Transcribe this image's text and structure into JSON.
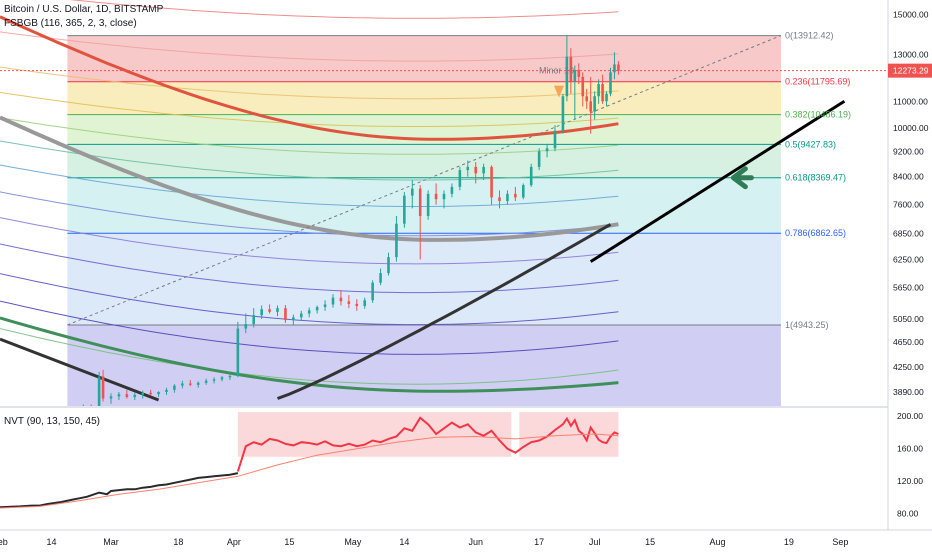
{
  "header": {
    "symbol_title": "Bitcoin / U.S. Dollar, 1D, BITSTAMP",
    "indicator_label": "FSBGB (116, 365, 2, 3, close)"
  },
  "sub_panel": {
    "indicator_label": "NVT (90, 13, 150, 45)"
  },
  "chart_data": [
    {
      "type": "candlestick",
      "title": "Bitcoin / U.S. Dollar, 1D, BITSTAMP",
      "y_scale": "log",
      "ylim": [
        3700,
        15800
      ],
      "y_ticks": [
        15000,
        13000,
        11000,
        10000,
        9200,
        8400,
        7600,
        6850,
        6250,
        5650,
        5050,
        4650,
        4250,
        3890
      ],
      "y_tick_labels": [
        "15000.00",
        "13000.00",
        "11000.00",
        "10000.00",
        "9200.00",
        "8400.00",
        "7600.00",
        "6850.00",
        "6250.00",
        "5650.00",
        "5050.00",
        "4650.00",
        "4250.00",
        "3890.00"
      ],
      "x_tick_labels": [
        {
          "label": "Feb",
          "day": 0
        },
        {
          "label": "14",
          "day": 13
        },
        {
          "label": "Mar",
          "day": 28
        },
        {
          "label": "18",
          "day": 45
        },
        {
          "label": "Apr",
          "day": 59
        },
        {
          "label": "15",
          "day": 73
        },
        {
          "label": "May",
          "day": 89
        },
        {
          "label": "14",
          "day": 102
        },
        {
          "label": "Jun",
          "day": 120
        },
        {
          "label": "17",
          "day": 136
        },
        {
          "label": "Jul",
          "day": 150
        },
        {
          "label": "15",
          "day": 164
        },
        {
          "label": "Aug",
          "day": 181
        },
        {
          "label": "19",
          "day": 199
        },
        {
          "label": "Sep",
          "day": 212
        }
      ],
      "last_price": 12273.29,
      "last_price_label": "12273.29",
      "fib_retracement": {
        "levels": [
          {
            "ratio": "0",
            "price": 13912.42,
            "label": "0(13912.42)",
            "color": "#787b86"
          },
          {
            "ratio": "0.236",
            "price": 11795.69,
            "label": "0.236(11795.69)",
            "color": "#f23645"
          },
          {
            "ratio": "0.382",
            "price": 10486.19,
            "label": "0.382(10486.19)",
            "color": "#4caf50"
          },
          {
            "ratio": "0.5",
            "price": 9427.83,
            "label": "0.5(9427.83)",
            "color": "#089981"
          },
          {
            "ratio": "0.618",
            "price": 8369.47,
            "label": "0.618(8369.47)",
            "color": "#089981"
          },
          {
            "ratio": "0.786",
            "price": 6862.65,
            "label": "0.786(6862.65)",
            "color": "#2962ff"
          },
          {
            "ratio": "1",
            "price": 4943.25,
            "label": "1(4943.25)",
            "color": "#787b86"
          }
        ],
        "zone_colors": [
          "#f5b7b7",
          "#f7e7a8",
          "#d6f0c4",
          "#c8ecd8",
          "#c8ecec",
          "#cfe2f7",
          "#e2e2e2",
          "#c9c5f2"
        ],
        "start_day": 17,
        "end_day": 197
      },
      "annotation": {
        "text": "Minor 10",
        "arrow_color": "#f7a35c"
      },
      "trendline_color": "#000000",
      "big_arrow_color": "#2e7d57",
      "candles": [
        {
          "day": 0,
          "o": 3450,
          "h": 3520,
          "l": 3400,
          "c": 3480
        },
        {
          "day": 5,
          "o": 3480,
          "h": 3560,
          "l": 3450,
          "c": 3510
        },
        {
          "day": 10,
          "o": 3510,
          "h": 3580,
          "l": 3470,
          "c": 3540
        },
        {
          "day": 15,
          "o": 3540,
          "h": 3620,
          "l": 3500,
          "c": 3590
        },
        {
          "day": 19,
          "o": 3590,
          "h": 3700,
          "l": 3560,
          "c": 3650
        },
        {
          "day": 21,
          "o": 3650,
          "h": 3720,
          "l": 3600,
          "c": 3680
        },
        {
          "day": 23,
          "o": 3680,
          "h": 3720,
          "l": 3640,
          "c": 3660
        },
        {
          "day": 25,
          "o": 3660,
          "h": 4180,
          "l": 3640,
          "c": 4110
        },
        {
          "day": 26,
          "o": 4110,
          "h": 4210,
          "l": 3760,
          "c": 3800
        },
        {
          "day": 28,
          "o": 3800,
          "h": 3870,
          "l": 3730,
          "c": 3830
        },
        {
          "day": 30,
          "o": 3830,
          "h": 3890,
          "l": 3780,
          "c": 3860
        },
        {
          "day": 32,
          "o": 3860,
          "h": 3920,
          "l": 3800,
          "c": 3820
        },
        {
          "day": 34,
          "o": 3820,
          "h": 3880,
          "l": 3780,
          "c": 3850
        },
        {
          "day": 36,
          "o": 3850,
          "h": 3910,
          "l": 3800,
          "c": 3880
        },
        {
          "day": 38,
          "o": 3880,
          "h": 3920,
          "l": 3840,
          "c": 3860
        },
        {
          "day": 40,
          "o": 3860,
          "h": 3900,
          "l": 3820,
          "c": 3890
        },
        {
          "day": 42,
          "o": 3890,
          "h": 3950,
          "l": 3850,
          "c": 3920
        },
        {
          "day": 44,
          "o": 3920,
          "h": 4000,
          "l": 3880,
          "c": 3980
        },
        {
          "day": 46,
          "o": 3980,
          "h": 4050,
          "l": 3940,
          "c": 4010
        },
        {
          "day": 48,
          "o": 4010,
          "h": 4060,
          "l": 3970,
          "c": 3990
        },
        {
          "day": 50,
          "o": 3990,
          "h": 4040,
          "l": 3950,
          "c": 4020
        },
        {
          "day": 52,
          "o": 4020,
          "h": 4080,
          "l": 3990,
          "c": 4050
        },
        {
          "day": 54,
          "o": 4050,
          "h": 4100,
          "l": 4010,
          "c": 4070
        },
        {
          "day": 56,
          "o": 4070,
          "h": 4120,
          "l": 4040,
          "c": 4100
        },
        {
          "day": 58,
          "o": 4100,
          "h": 4150,
          "l": 4060,
          "c": 4120
        },
        {
          "day": 60,
          "o": 4120,
          "h": 5000,
          "l": 4100,
          "c": 4880
        },
        {
          "day": 62,
          "o": 4880,
          "h": 5150,
          "l": 4800,
          "c": 4960
        },
        {
          "day": 64,
          "o": 4960,
          "h": 5250,
          "l": 4900,
          "c": 5120
        },
        {
          "day": 66,
          "o": 5120,
          "h": 5300,
          "l": 5050,
          "c": 5230
        },
        {
          "day": 68,
          "o": 5230,
          "h": 5320,
          "l": 5150,
          "c": 5180
        },
        {
          "day": 70,
          "o": 5180,
          "h": 5300,
          "l": 5100,
          "c": 5250
        },
        {
          "day": 72,
          "o": 5250,
          "h": 5310,
          "l": 4980,
          "c": 5030
        },
        {
          "day": 74,
          "o": 5030,
          "h": 5130,
          "l": 4950,
          "c": 5080
        },
        {
          "day": 76,
          "o": 5080,
          "h": 5200,
          "l": 5020,
          "c": 5150
        },
        {
          "day": 78,
          "o": 5150,
          "h": 5260,
          "l": 5080,
          "c": 5210
        },
        {
          "day": 80,
          "o": 5210,
          "h": 5300,
          "l": 5150,
          "c": 5270
        },
        {
          "day": 82,
          "o": 5270,
          "h": 5400,
          "l": 5200,
          "c": 5320
        },
        {
          "day": 84,
          "o": 5320,
          "h": 5520,
          "l": 5260,
          "c": 5450
        },
        {
          "day": 86,
          "o": 5450,
          "h": 5600,
          "l": 5300,
          "c": 5380
        },
        {
          "day": 88,
          "o": 5380,
          "h": 5500,
          "l": 5250,
          "c": 5330
        },
        {
          "day": 90,
          "o": 5330,
          "h": 5420,
          "l": 5200,
          "c": 5290
        },
        {
          "day": 92,
          "o": 5290,
          "h": 5450,
          "l": 5240,
          "c": 5400
        },
        {
          "day": 94,
          "o": 5400,
          "h": 5800,
          "l": 5350,
          "c": 5750
        },
        {
          "day": 96,
          "o": 5750,
          "h": 6050,
          "l": 5700,
          "c": 5950
        },
        {
          "day": 98,
          "o": 5950,
          "h": 6400,
          "l": 5900,
          "c": 6300
        },
        {
          "day": 100,
          "o": 6300,
          "h": 7300,
          "l": 6200,
          "c": 7100
        },
        {
          "day": 102,
          "o": 7100,
          "h": 7950,
          "l": 7000,
          "c": 7850
        },
        {
          "day": 104,
          "o": 7850,
          "h": 8300,
          "l": 7500,
          "c": 8050
        },
        {
          "day": 106,
          "o": 8050,
          "h": 8150,
          "l": 6250,
          "c": 7300
        },
        {
          "day": 108,
          "o": 7300,
          "h": 8000,
          "l": 7200,
          "c": 7900
        },
        {
          "day": 110,
          "o": 7900,
          "h": 8200,
          "l": 7600,
          "c": 7750
        },
        {
          "day": 112,
          "o": 7750,
          "h": 8000,
          "l": 7500,
          "c": 7900
        },
        {
          "day": 114,
          "o": 7900,
          "h": 8200,
          "l": 7800,
          "c": 8100
        },
        {
          "day": 116,
          "o": 8100,
          "h": 8700,
          "l": 8000,
          "c": 8600
        },
        {
          "day": 118,
          "o": 8600,
          "h": 8900,
          "l": 8400,
          "c": 8700
        },
        {
          "day": 120,
          "o": 8700,
          "h": 8850,
          "l": 8200,
          "c": 8500
        },
        {
          "day": 122,
          "o": 8500,
          "h": 8800,
          "l": 8300,
          "c": 8700
        },
        {
          "day": 124,
          "o": 8700,
          "h": 8750,
          "l": 7600,
          "c": 7800
        },
        {
          "day": 126,
          "o": 7800,
          "h": 8000,
          "l": 7500,
          "c": 7700
        },
        {
          "day": 128,
          "o": 7700,
          "h": 8000,
          "l": 7600,
          "c": 7900
        },
        {
          "day": 130,
          "o": 7900,
          "h": 8100,
          "l": 7700,
          "c": 7800
        },
        {
          "day": 132,
          "o": 7800,
          "h": 8200,
          "l": 7750,
          "c": 8150
        },
        {
          "day": 134,
          "o": 8150,
          "h": 8800,
          "l": 8100,
          "c": 8700
        },
        {
          "day": 136,
          "o": 8700,
          "h": 9300,
          "l": 8600,
          "c": 9200
        },
        {
          "day": 138,
          "o": 9200,
          "h": 9450,
          "l": 9000,
          "c": 9300
        },
        {
          "day": 140,
          "o": 9300,
          "h": 10100,
          "l": 9200,
          "c": 9900
        },
        {
          "day": 142,
          "o": 9900,
          "h": 11300,
          "l": 9800,
          "c": 11200
        },
        {
          "day": 143,
          "o": 11200,
          "h": 13900,
          "l": 11000,
          "c": 12900
        },
        {
          "day": 144,
          "o": 12900,
          "h": 13300,
          "l": 11300,
          "c": 11800
        },
        {
          "day": 145,
          "o": 11800,
          "h": 12500,
          "l": 10300,
          "c": 12300
        },
        {
          "day": 146,
          "o": 12300,
          "h": 12600,
          "l": 11700,
          "c": 12000
        },
        {
          "day": 147,
          "o": 12000,
          "h": 12200,
          "l": 10800,
          "c": 11200
        },
        {
          "day": 148,
          "o": 11200,
          "h": 11500,
          "l": 10700,
          "c": 11000
        },
        {
          "day": 149,
          "o": 11000,
          "h": 12000,
          "l": 9800,
          "c": 10600
        },
        {
          "day": 150,
          "o": 10600,
          "h": 11400,
          "l": 10300,
          "c": 11200
        },
        {
          "day": 151,
          "o": 11200,
          "h": 11900,
          "l": 10900,
          "c": 11700
        },
        {
          "day": 152,
          "o": 11700,
          "h": 12100,
          "l": 10900,
          "c": 11000
        },
        {
          "day": 153,
          "o": 11000,
          "h": 11400,
          "l": 10800,
          "c": 11300
        },
        {
          "day": 154,
          "o": 11300,
          "h": 12400,
          "l": 11200,
          "c": 12200
        },
        {
          "day": 155,
          "o": 12200,
          "h": 13100,
          "l": 11900,
          "c": 12550
        },
        {
          "day": 156,
          "o": 12550,
          "h": 12700,
          "l": 12100,
          "c": 12273.29
        }
      ]
    },
    {
      "type": "line",
      "title": "NVT (90, 13, 150, 45)",
      "ylim": [
        60,
        210
      ],
      "y_ticks": [
        200,
        160,
        120,
        80
      ],
      "y_tick_labels": [
        "200.00",
        "160.00",
        "120.00",
        "80.00"
      ],
      "series": [
        {
          "color": "#2a2a2a",
          "x": [
            0,
            5,
            8,
            10,
            12,
            15,
            18,
            20,
            22,
            25,
            27,
            28,
            30,
            32,
            34,
            36,
            38,
            40,
            42,
            44,
            46,
            48,
            50,
            52,
            54,
            56,
            58,
            60
          ],
          "values": [
            88,
            89,
            90,
            90,
            92,
            94,
            97,
            99,
            101,
            106,
            104,
            108,
            109,
            110,
            110,
            112,
            113,
            115,
            116,
            118,
            120,
            122,
            124,
            125,
            126,
            127,
            128,
            130
          ]
        },
        {
          "color": "#f23645",
          "x": [
            60,
            62,
            64,
            66,
            68,
            70,
            72,
            74,
            76,
            78,
            80,
            82,
            84,
            86,
            88,
            90,
            92,
            94,
            96,
            98,
            100,
            102,
            104,
            106,
            108,
            110,
            112,
            114,
            116,
            118,
            120,
            122,
            124,
            126,
            128,
            130,
            132,
            134,
            136,
            138,
            140,
            142,
            143,
            144,
            145,
            146,
            147,
            148,
            149,
            150,
            151,
            152,
            153,
            154,
            155,
            156
          ],
          "values": [
            132,
            163,
            168,
            165,
            172,
            170,
            166,
            164,
            168,
            167,
            165,
            169,
            164,
            163,
            166,
            163,
            165,
            170,
            168,
            172,
            175,
            185,
            182,
            198,
            190,
            178,
            185,
            192,
            186,
            190,
            180,
            176,
            182,
            170,
            160,
            155,
            162,
            168,
            170,
            175,
            183,
            190,
            197,
            188,
            195,
            182,
            178,
            170,
            186,
            179,
            171,
            168,
            167,
            175,
            180,
            178
          ]
        },
        {
          "color": "#ff7f6e",
          "x": [
            0,
            10,
            20,
            30,
            40,
            50,
            60,
            70,
            80,
            90,
            100,
            110,
            120,
            130,
            140,
            150,
            156
          ],
          "values": [
            87,
            89,
            96,
            104,
            110,
            118,
            126,
            140,
            152,
            160,
            168,
            174,
            175,
            172,
            176,
            178,
            176
          ]
        }
      ],
      "highlight_zones": [
        {
          "from_day": 60,
          "to_day": 129,
          "color": "#f9c9cc"
        },
        {
          "from_day": 131,
          "to_day": 156,
          "color": "#f9c9cc"
        }
      ]
    }
  ]
}
